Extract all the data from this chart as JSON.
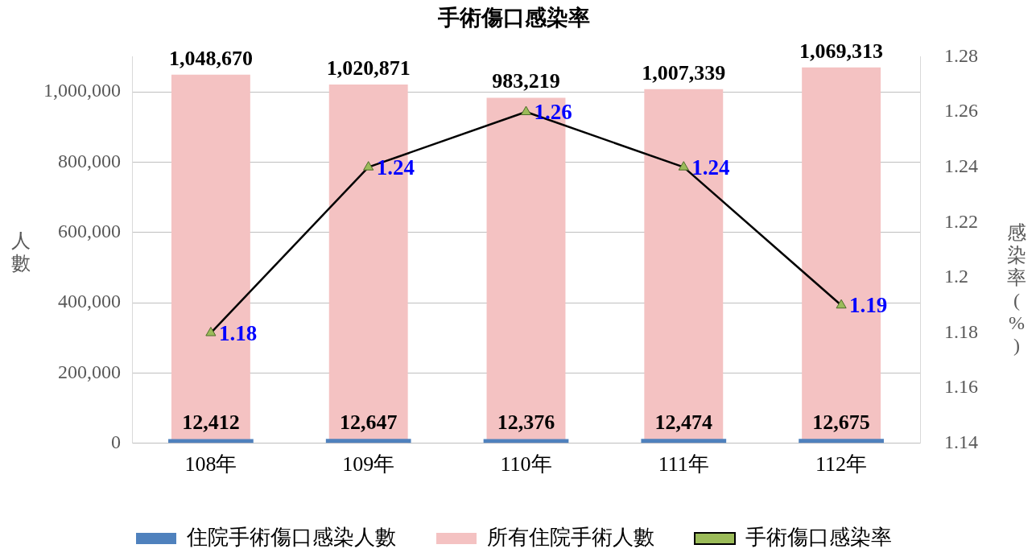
{
  "chart_data": {
    "type": "bar",
    "title": "手術傷口感染率",
    "ylabel": "人數",
    "y2label": "感染率(%)",
    "categories": [
      "108年",
      "109年",
      "110年",
      "111年",
      "112年"
    ],
    "series": [
      {
        "name": "住院手術傷口感染人數",
        "color": "#4f81bd",
        "values": [
          12412,
          12647,
          12376,
          12474,
          12675
        ],
        "value_labels": [
          "12,412",
          "12,647",
          "12,376",
          "12,474",
          "12,675"
        ]
      },
      {
        "name": "所有住院手術人數",
        "color": "#f4c2c2",
        "values": [
          1048670,
          1020871,
          983219,
          1007339,
          1069313
        ],
        "value_labels": [
          "1,048,670",
          "1,020,871",
          "983,219",
          "1,007,339",
          "1,069,313"
        ]
      },
      {
        "name": "手術傷口感染率",
        "type": "line",
        "axis": "y2",
        "color": "#000000",
        "values": [
          1.18,
          1.24,
          1.26,
          1.24,
          1.19
        ]
      }
    ],
    "ylim": [
      0,
      1100000
    ],
    "yticks": [
      0,
      {
        "value": 200000,
        "label": "200,000"
      },
      {
        "value": 400000,
        "label": "400,000"
      },
      {
        "value": 600000,
        "label": "600,000"
      },
      {
        "value": 800000,
        "label": "800,000"
      },
      {
        "value": 1000000,
        "label": "1,000,000"
      }
    ],
    "y2lim": [
      1.14,
      1.28
    ],
    "y2ticks": [
      1.14,
      1.16,
      1.18,
      1.2,
      1.22,
      1.24,
      1.26,
      1.28
    ],
    "grid": "y",
    "legend": "bottom",
    "marker": "triangle",
    "data_labels": true
  }
}
